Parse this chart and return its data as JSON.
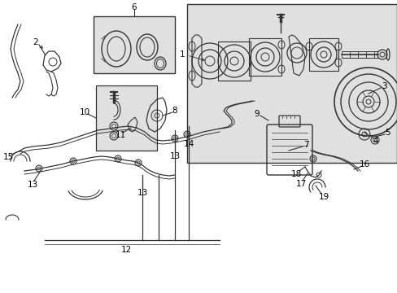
{
  "bg_color": "#ffffff",
  "line_color": "#333333",
  "label_color": "#000000",
  "light_gray_bg": "#e0e0e0",
  "fig_width": 4.89,
  "fig_height": 3.6,
  "dpi": 100,
  "border_color": "#555555"
}
